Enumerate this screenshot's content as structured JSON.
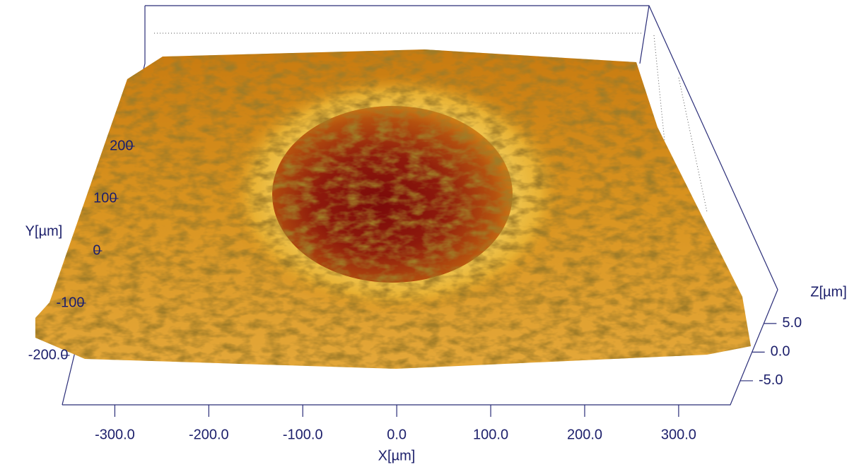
{
  "chart_data": {
    "type": "surface3d",
    "x_label": "X[µm]",
    "y_label": "Y[µm]",
    "z_label": "Z[µm]",
    "xlim": [
      -356,
      355
    ],
    "xticks": [
      {
        "value": -300,
        "label": "-300.0"
      },
      {
        "value": -200,
        "label": "-200.0"
      },
      {
        "value": -100,
        "label": "-100.0"
      },
      {
        "value": 0,
        "label": "0.0"
      },
      {
        "value": 100,
        "label": "100.0"
      },
      {
        "value": 200,
        "label": "200.0"
      },
      {
        "value": 300,
        "label": "300.0"
      }
    ],
    "ylim": [
      -250,
      250
    ],
    "yticks": [
      {
        "value": -200,
        "label": "-200.0"
      },
      -100,
      0,
      100,
      200
    ],
    "zlim": [
      -9.2,
      10.9
    ],
    "zticks": [
      {
        "value": 5,
        "label": "5.0"
      },
      {
        "value": 0,
        "label": "0.0"
      },
      {
        "value": -5,
        "label": "-5.0"
      }
    ]
  }
}
